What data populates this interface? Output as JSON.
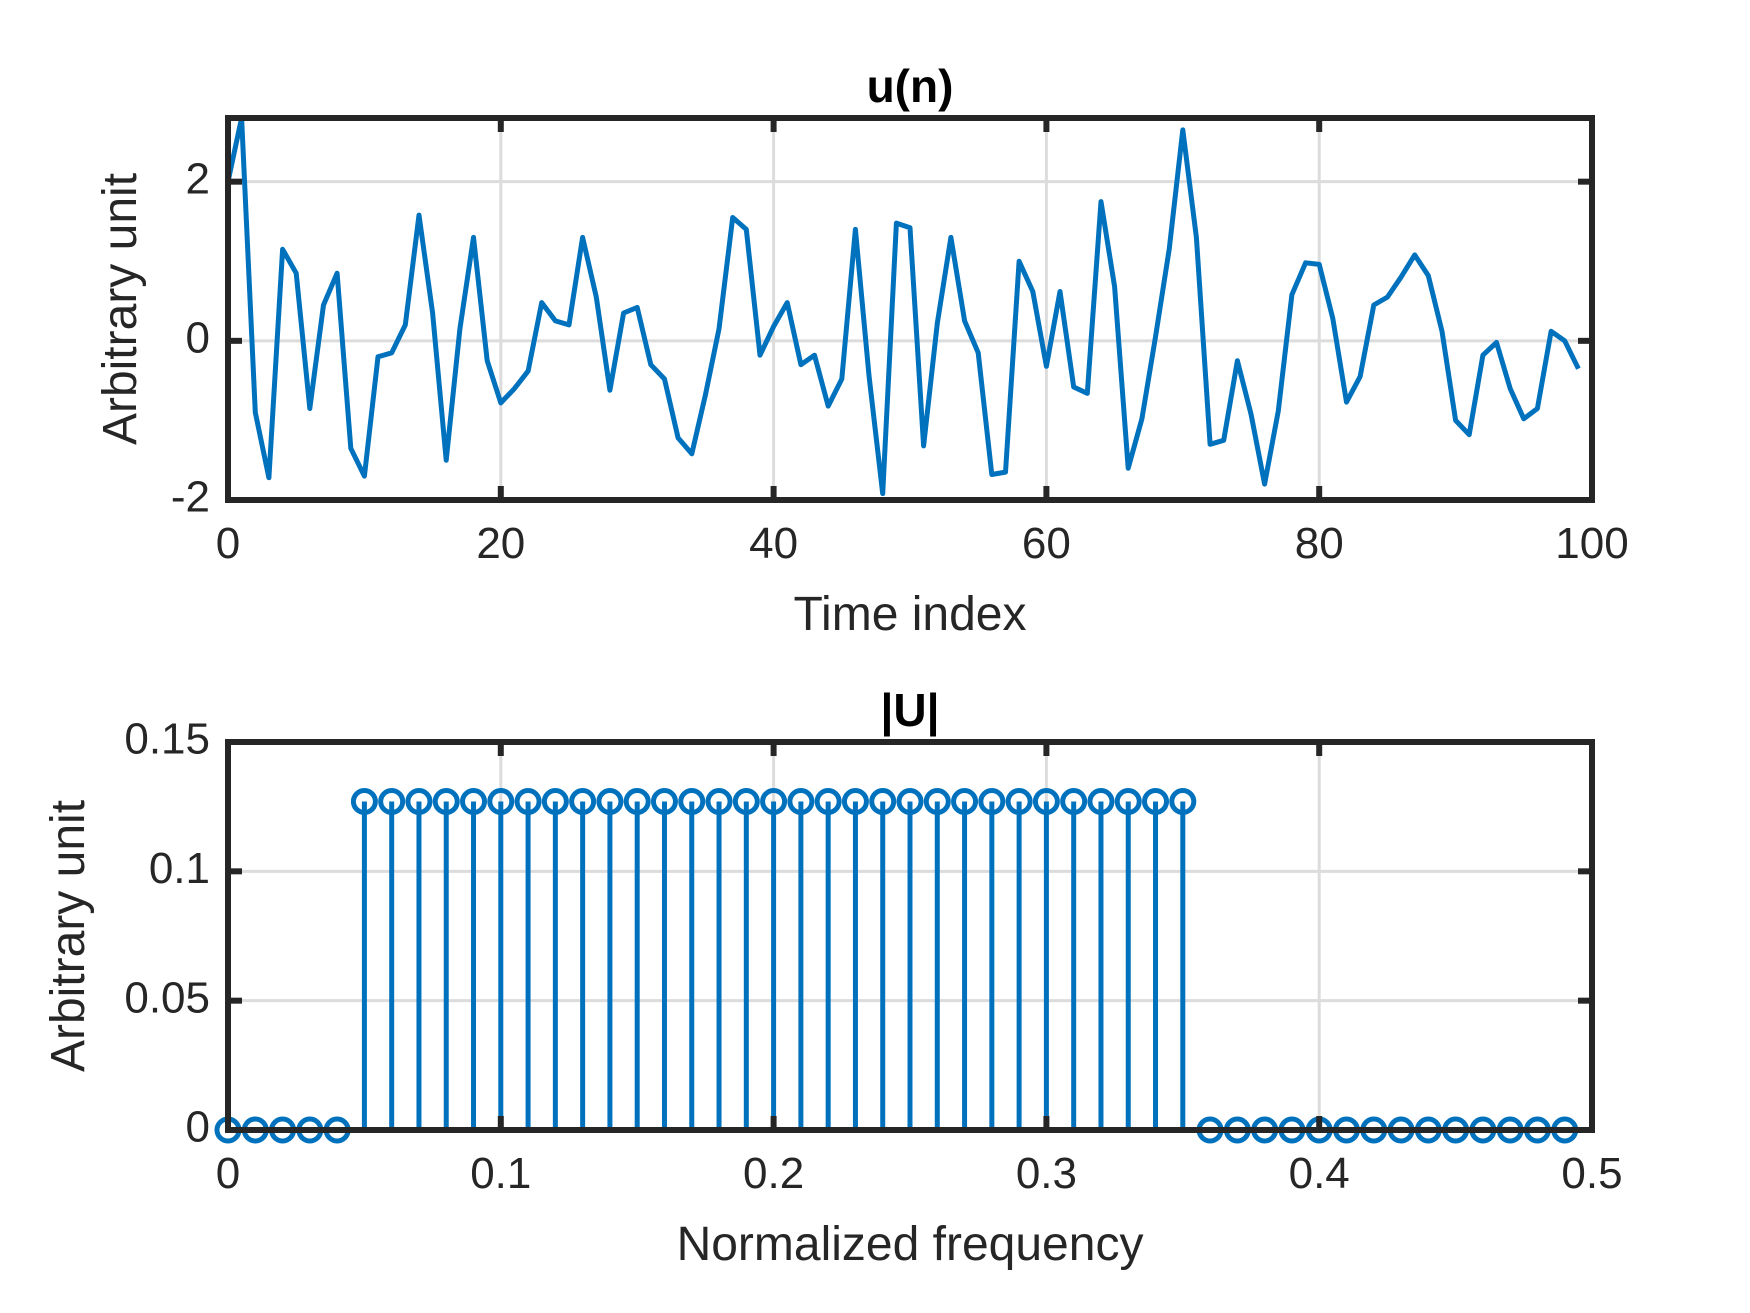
{
  "colors": {
    "series": "#0072BD",
    "axes": "#262626",
    "grid": "#dcdcdc"
  },
  "chart_data": [
    {
      "type": "line",
      "title": "u(n)",
      "xlabel": "Time index",
      "ylabel": "Arbitrary unit",
      "xlim": [
        0,
        100
      ],
      "ylim": [
        -2,
        2.8
      ],
      "xticks": [
        0,
        20,
        40,
        60,
        80,
        100
      ],
      "xtick_labels": [
        "0",
        "20",
        "40",
        "60",
        "80",
        "100"
      ],
      "yticks": [
        -2,
        0,
        2
      ],
      "ytick_labels": [
        "-2",
        "0",
        "2"
      ],
      "grid": true,
      "series": [
        {
          "x": [
            0,
            1,
            2,
            3,
            4,
            5,
            6,
            7,
            8,
            9,
            10,
            11,
            12,
            13,
            14,
            15,
            16,
            17,
            18,
            19,
            20,
            21,
            22,
            23,
            24,
            25,
            26,
            27,
            28,
            29,
            30,
            31,
            32,
            33,
            34,
            35,
            36,
            37,
            38,
            39,
            40,
            41,
            42,
            43,
            44,
            45,
            46,
            47,
            48,
            49,
            50,
            51,
            52,
            53,
            54,
            55,
            56,
            57,
            58,
            59,
            60,
            61,
            62,
            63,
            64,
            65,
            66,
            67,
            68,
            69,
            70,
            71,
            72,
            73,
            74,
            75,
            76,
            77,
            78,
            79,
            80,
            81,
            82,
            83,
            84,
            85,
            86,
            87,
            88,
            89,
            90,
            91,
            92,
            93,
            94,
            95,
            96,
            97,
            98,
            99
          ],
          "values": [
            2.0,
            2.8,
            -0.9,
            -1.72,
            1.15,
            0.85,
            -0.85,
            0.45,
            0.85,
            -1.35,
            -1.7,
            -0.2,
            -0.15,
            0.2,
            1.58,
            0.35,
            -1.5,
            0.15,
            1.3,
            -0.25,
            -0.78,
            -0.6,
            -0.38,
            0.48,
            0.25,
            0.2,
            1.3,
            0.55,
            -0.62,
            0.35,
            0.42,
            -0.3,
            -0.48,
            -1.22,
            -1.42,
            -0.68,
            0.15,
            1.55,
            1.4,
            -0.18,
            0.18,
            0.48,
            -0.3,
            -0.18,
            -0.82,
            -0.48,
            1.4,
            -0.45,
            -1.92,
            1.48,
            1.42,
            -1.32,
            0.22,
            1.3,
            0.25,
            -0.15,
            -1.68,
            -1.65,
            1.0,
            0.62,
            -0.32,
            0.62,
            -0.58,
            -0.66,
            1.75,
            0.68,
            -1.6,
            -0.98,
            0.05,
            1.15,
            2.65,
            1.3,
            -1.3,
            -1.25,
            -0.25,
            -0.92,
            -1.8,
            -0.88,
            0.58,
            0.98,
            0.96,
            0.28,
            -0.77,
            -0.45,
            0.45,
            0.55,
            0.8,
            1.08,
            0.82,
            0.12,
            -1.0,
            -1.18,
            -0.18,
            -0.02,
            -0.6,
            -0.98,
            -0.85,
            0.12,
            0.0,
            -0.35
          ]
        }
      ]
    },
    {
      "type": "stem",
      "title": "|U|",
      "xlabel": "Normalized frequency",
      "ylabel": "Arbitrary unit",
      "xlim": [
        0,
        0.5
      ],
      "ylim": [
        0,
        0.15
      ],
      "xticks": [
        0,
        0.1,
        0.2,
        0.3,
        0.4,
        0.5
      ],
      "xtick_labels": [
        "0",
        "0.1",
        "0.2",
        "0.3",
        "0.4",
        "0.5"
      ],
      "yticks": [
        0,
        0.05,
        0.1,
        0.15
      ],
      "ytick_labels": [
        "0",
        "0.05",
        "0.1",
        "0.15"
      ],
      "grid": true,
      "series": [
        {
          "x": [
            0,
            0.01,
            0.02,
            0.03,
            0.04,
            0.05,
            0.06,
            0.07,
            0.08,
            0.09,
            0.1,
            0.11,
            0.12,
            0.13,
            0.14,
            0.15,
            0.16,
            0.17,
            0.18,
            0.19,
            0.2,
            0.21,
            0.22,
            0.23,
            0.24,
            0.25,
            0.26,
            0.27,
            0.28,
            0.29,
            0.3,
            0.31,
            0.32,
            0.33,
            0.34,
            0.35,
            0.36,
            0.37,
            0.38,
            0.39,
            0.4,
            0.41,
            0.42,
            0.43,
            0.44,
            0.45,
            0.46,
            0.47,
            0.48,
            0.49
          ],
          "values": [
            0,
            0,
            0,
            0,
            0,
            0.127,
            0.127,
            0.127,
            0.127,
            0.127,
            0.127,
            0.127,
            0.127,
            0.127,
            0.127,
            0.127,
            0.127,
            0.127,
            0.127,
            0.127,
            0.127,
            0.127,
            0.127,
            0.127,
            0.127,
            0.127,
            0.127,
            0.127,
            0.127,
            0.127,
            0.127,
            0.127,
            0.127,
            0.127,
            0.127,
            0.127,
            0,
            0,
            0,
            0,
            0,
            0,
            0,
            0,
            0,
            0,
            0,
            0,
            0,
            0
          ]
        }
      ]
    }
  ]
}
